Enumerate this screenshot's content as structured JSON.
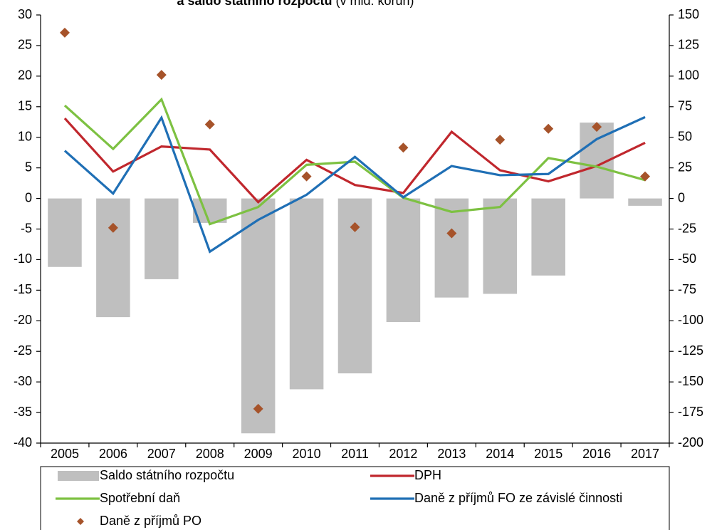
{
  "chart_data": {
    "type": "combo",
    "title": "a saldo státního rozpočtu",
    "subtitle": "(v mld. korun)",
    "categories": [
      "2005",
      "2006",
      "2007",
      "2008",
      "2009",
      "2010",
      "2011",
      "2012",
      "2013",
      "2014",
      "2015",
      "2016",
      "2017"
    ],
    "ylim": [
      -40,
      30
    ],
    "yticks": [
      -40,
      -35,
      -30,
      -25,
      -20,
      -15,
      -10,
      -5,
      0,
      5,
      10,
      15,
      20,
      25,
      30
    ],
    "y2lim": [
      -200,
      150
    ],
    "y2ticks": [
      -200,
      -175,
      -150,
      -125,
      -100,
      -75,
      -50,
      -25,
      0,
      25,
      50,
      75,
      100,
      125,
      150
    ],
    "series": [
      {
        "name": "Saldo státního rozpočtu",
        "type": "bar",
        "axis": "y2",
        "color": "#bfbfbf",
        "values": [
          -56,
          -97,
          -66,
          -20,
          -192,
          -156,
          -143,
          -101,
          -81,
          -78,
          -63,
          62,
          -6
        ]
      },
      {
        "name": "DPH",
        "type": "line",
        "color": "#c0272d",
        "values": [
          13.1,
          4.4,
          8.5,
          8.0,
          -0.6,
          6.3,
          2.2,
          0.9,
          10.9,
          4.6,
          2.8,
          5.3,
          9.1
        ]
      },
      {
        "name": "Spotřební daň",
        "type": "line",
        "color": "#7dc142",
        "values": [
          15.2,
          8.1,
          16.2,
          -4.2,
          -1.4,
          5.5,
          6.0,
          0.1,
          -2.2,
          -1.4,
          6.6,
          5.2,
          3.0
        ]
      },
      {
        "name": "Daně z příjmů FO ze závislé činnosti",
        "type": "line",
        "color": "#1f6fb5",
        "values": [
          7.8,
          0.8,
          13.2,
          -8.7,
          -3.5,
          0.6,
          6.8,
          0.2,
          5.3,
          3.8,
          4.0,
          9.7,
          13.3
        ]
      },
      {
        "name": "Daně z příjmů PO",
        "type": "scatter",
        "color": "#a6532a",
        "values": [
          27.1,
          -4.8,
          20.2,
          12.1,
          -34.4,
          3.6,
          -4.7,
          8.3,
          -5.7,
          9.6,
          11.4,
          11.7,
          3.6
        ]
      }
    ]
  }
}
